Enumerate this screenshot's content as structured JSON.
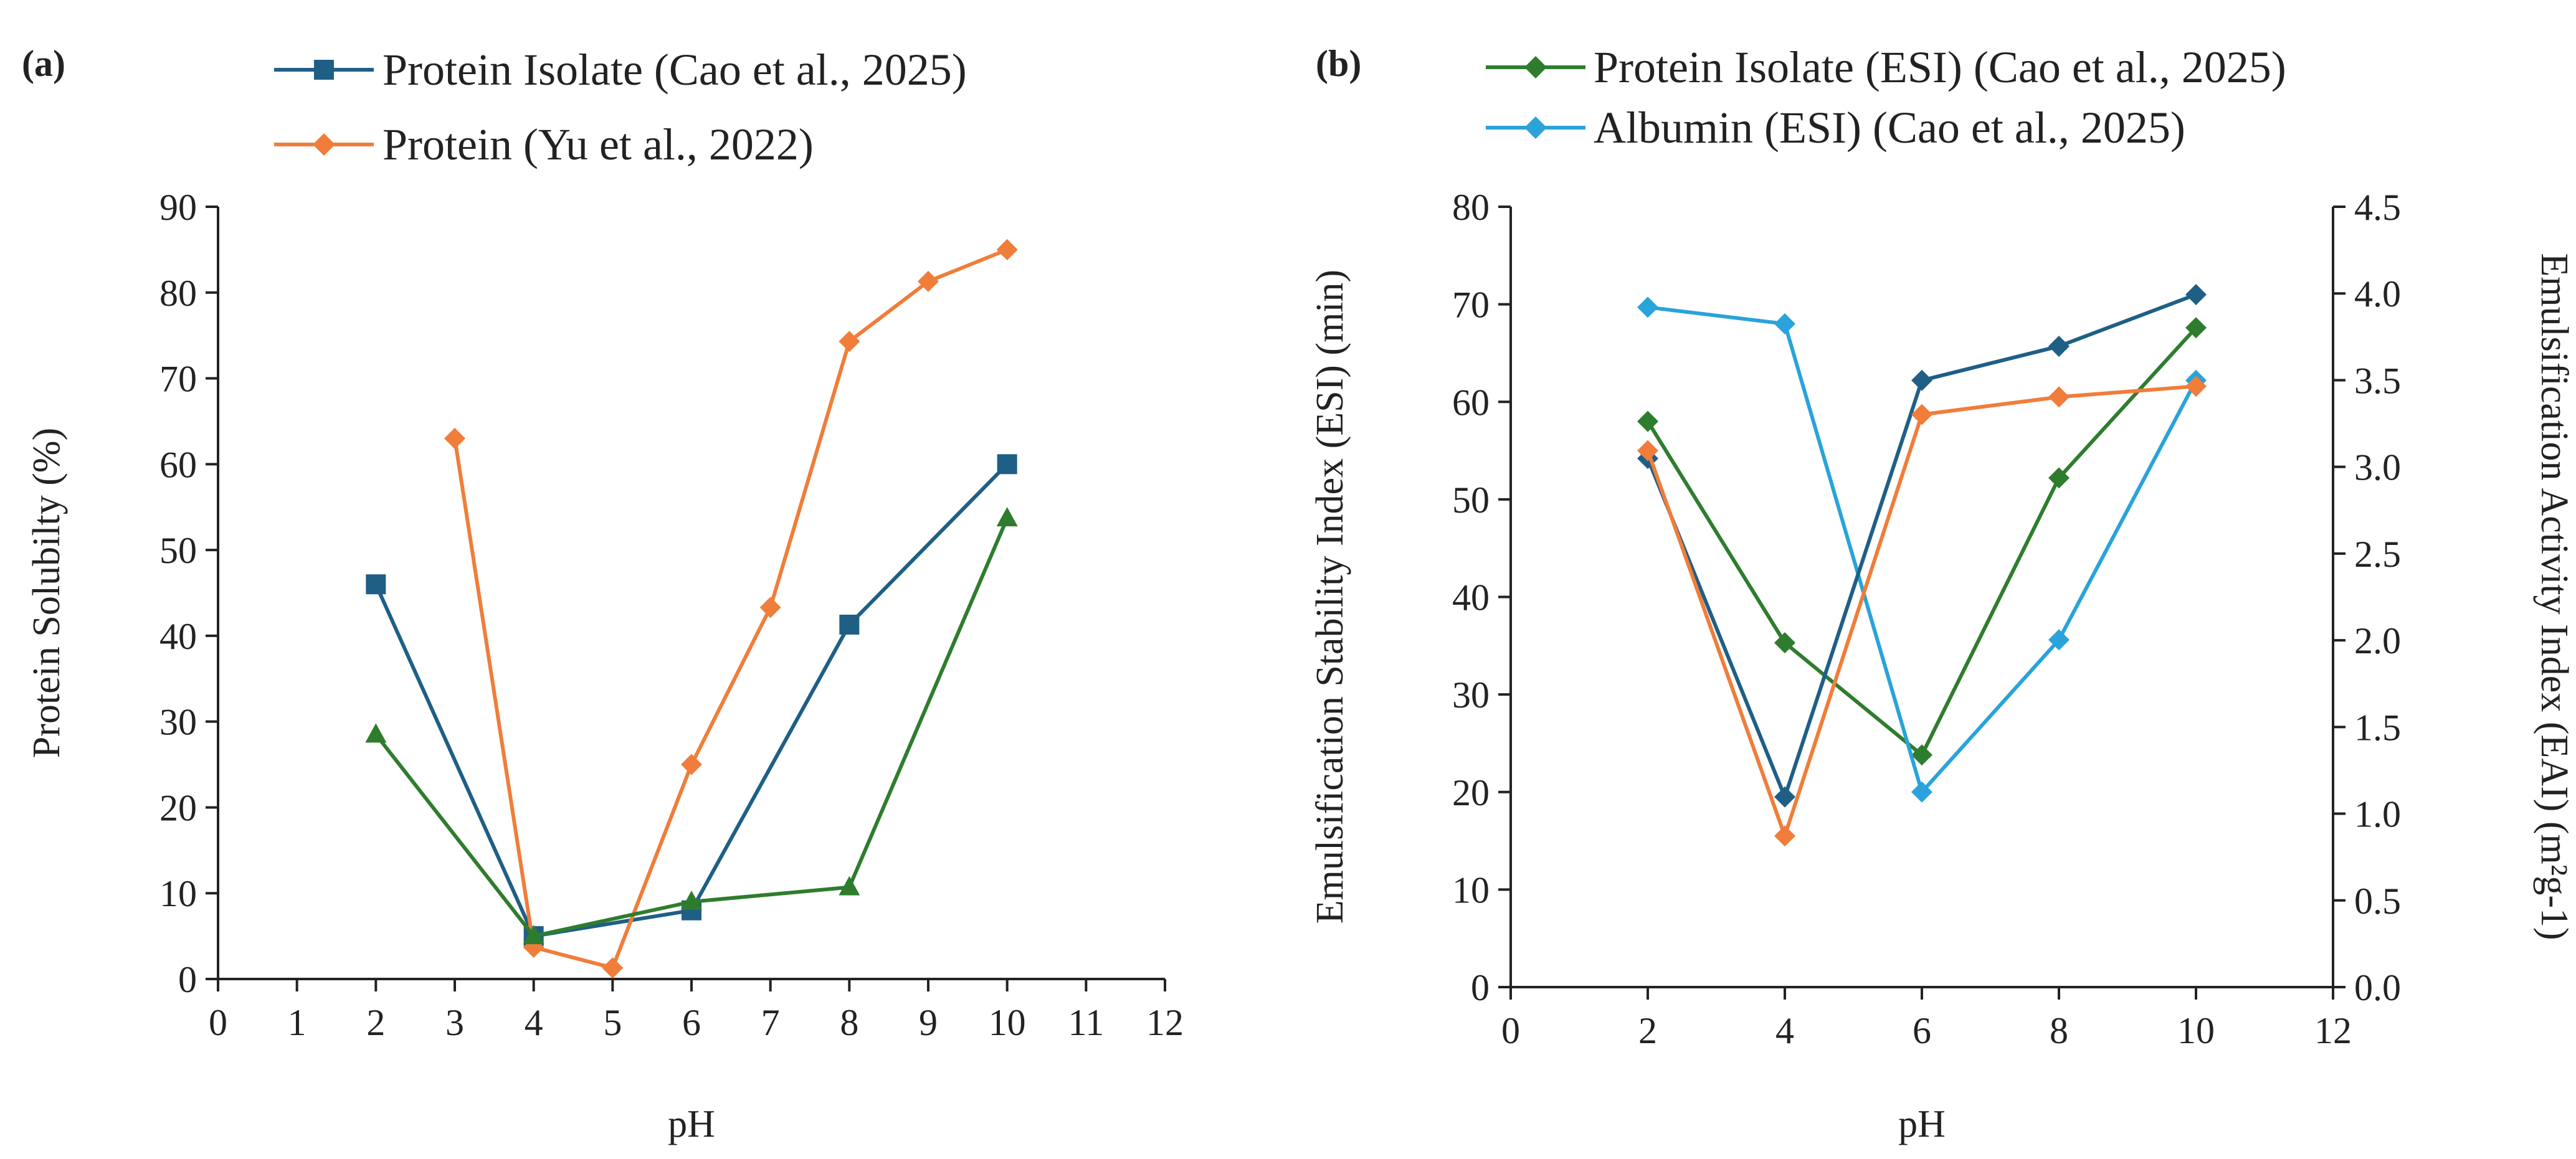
{
  "chart_data": [
    {
      "id": "a",
      "panel_label": "(a)",
      "type": "line",
      "xlabel": "pH",
      "ylabel": "Protein Solubilty (%)",
      "xlim": [
        0,
        12
      ],
      "ylim": [
        0,
        90
      ],
      "x_ticks": [
        "0",
        "1",
        "2",
        "3",
        "4",
        "5",
        "6",
        "7",
        "8",
        "9",
        "10",
        "11",
        "12"
      ],
      "y_ticks": [
        "0",
        "10",
        "20",
        "30",
        "40",
        "50",
        "60",
        "70",
        "80",
        "90"
      ],
      "legend": [
        "Protein Isolate (Cao et al., 2025)",
        "Protein (Yu et al., 2022)"
      ],
      "series": [
        {
          "name": "Protein Isolate (Cao et al., 2025)",
          "color": "#1F5F86",
          "marker": "square",
          "x": [
            2,
            4,
            6,
            8,
            10
          ],
          "y": [
            46,
            5,
            8,
            41.3,
            60
          ]
        },
        {
          "name": "Protein (Yu et al., 2022)",
          "color": "#F07D3A",
          "marker": "diamond",
          "x": [
            3,
            4,
            5,
            6,
            7,
            8,
            9,
            10
          ],
          "y": [
            63,
            3.7,
            1.3,
            25,
            43.3,
            74.3,
            81.3,
            85
          ]
        },
        {
          "name": "",
          "color": "#2E7D2E",
          "marker": "triangle",
          "x": [
            2,
            4,
            6,
            8,
            10
          ],
          "y": [
            28.5,
            5,
            9,
            10.7,
            53.7
          ]
        }
      ]
    },
    {
      "id": "b",
      "panel_label": "(b)",
      "type": "line",
      "xlabel": "pH",
      "ylabel": "Emulsification Stability Index (ESI) (min)",
      "ylabel_right": "Emulsification Activity Index (EAI) (m²g-1)",
      "xlim": [
        0,
        12
      ],
      "ylim": [
        0,
        80
      ],
      "ylim_right": [
        0,
        4.5
      ],
      "x_ticks": [
        "0",
        "2",
        "4",
        "6",
        "8",
        "10",
        "12"
      ],
      "y_ticks": [
        "0",
        "10",
        "20",
        "30",
        "40",
        "50",
        "60",
        "70",
        "80"
      ],
      "y_ticks_right": [
        "0.0",
        "0.5",
        "1.0",
        "1.5",
        "2.0",
        "2.5",
        "3.0",
        "3.5",
        "4.0",
        "4.5"
      ],
      "legend": [
        "Protein Isolate (ESI) (Cao et al., 2025)",
        "Albumin (ESI) (Cao et al., 2025)"
      ],
      "series": [
        {
          "name": "Protein Isolate (ESI) (Cao et al., 2025)",
          "color": "#2E7D2E",
          "marker": "diamond",
          "axis": "left",
          "x": [
            2,
            4,
            6,
            8,
            10
          ],
          "y": [
            58,
            35.3,
            23.8,
            52.2,
            67.6
          ]
        },
        {
          "name": "Albumin (ESI) (Cao et al., 2025)",
          "color": "#29A3DA",
          "marker": "diamond",
          "axis": "left",
          "x": [
            2,
            4,
            6,
            8,
            10
          ],
          "y": [
            69.7,
            68,
            20,
            35.6,
            62.2
          ]
        },
        {
          "name": "",
          "color": "#1F5F86",
          "marker": "diamond",
          "axis": "left",
          "x": [
            2,
            4,
            6,
            8,
            10
          ],
          "y": [
            54.2,
            19.5,
            62.2,
            65.7,
            71
          ]
        },
        {
          "name": "",
          "color": "#F07D3A",
          "marker": "diamond",
          "axis": "left",
          "x": [
            2,
            4,
            6,
            8,
            10
          ],
          "y": [
            55,
            15.5,
            58.7,
            60.5,
            61.6
          ]
        }
      ]
    }
  ]
}
